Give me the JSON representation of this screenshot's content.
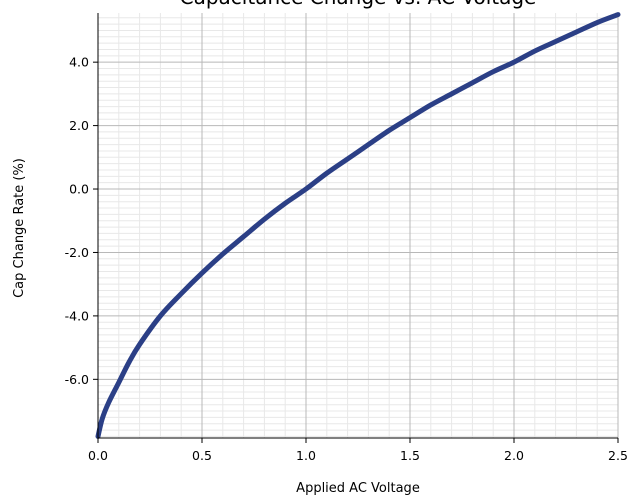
{
  "chart_data": {
    "type": "line",
    "title": "Capacitance Change vs. AC Voltage",
    "xlabel": "Applied AC Voltage",
    "ylabel": "Cap Change Rate (%)",
    "xlim": [
      0,
      2.5
    ],
    "ylim": [
      -7.85,
      5.55
    ],
    "x_ticks": [
      0.0,
      0.5,
      1.0,
      1.5,
      2.0,
      2.5
    ],
    "x_tick_labels": [
      "0.0",
      "0.5",
      "1.0",
      "1.5",
      "2.0",
      "2.5"
    ],
    "y_ticks": [
      4.0,
      2.0,
      0.0,
      -2.0,
      -4.0,
      -6.0
    ],
    "y_tick_labels": [
      "4.0",
      "2.0",
      "0.0",
      "-2.0",
      "-4.0",
      "-6.0"
    ],
    "grid": true,
    "colors": {
      "series": "#2b3f86",
      "grid_major": "#b8b8b8",
      "grid_minor": "#e8e8e8"
    },
    "series": [
      {
        "x": [
          0.0,
          0.02,
          0.05,
          0.1,
          0.15,
          0.2,
          0.3,
          0.4,
          0.5,
          0.6,
          0.7,
          0.8,
          0.9,
          1.0,
          1.1,
          1.2,
          1.3,
          1.4,
          1.5,
          1.6,
          1.7,
          1.8,
          1.9,
          2.0,
          2.1,
          2.2,
          2.3,
          2.4,
          2.5
        ],
        "y": [
          -7.8,
          -7.25,
          -6.75,
          -6.1,
          -5.45,
          -4.9,
          -4.0,
          -3.3,
          -2.65,
          -2.05,
          -1.5,
          -0.95,
          -0.45,
          0.0,
          0.5,
          0.95,
          1.4,
          1.85,
          2.25,
          2.65,
          3.0,
          3.35,
          3.7,
          4.0,
          4.35,
          4.65,
          4.95,
          5.25,
          5.5
        ]
      }
    ]
  }
}
